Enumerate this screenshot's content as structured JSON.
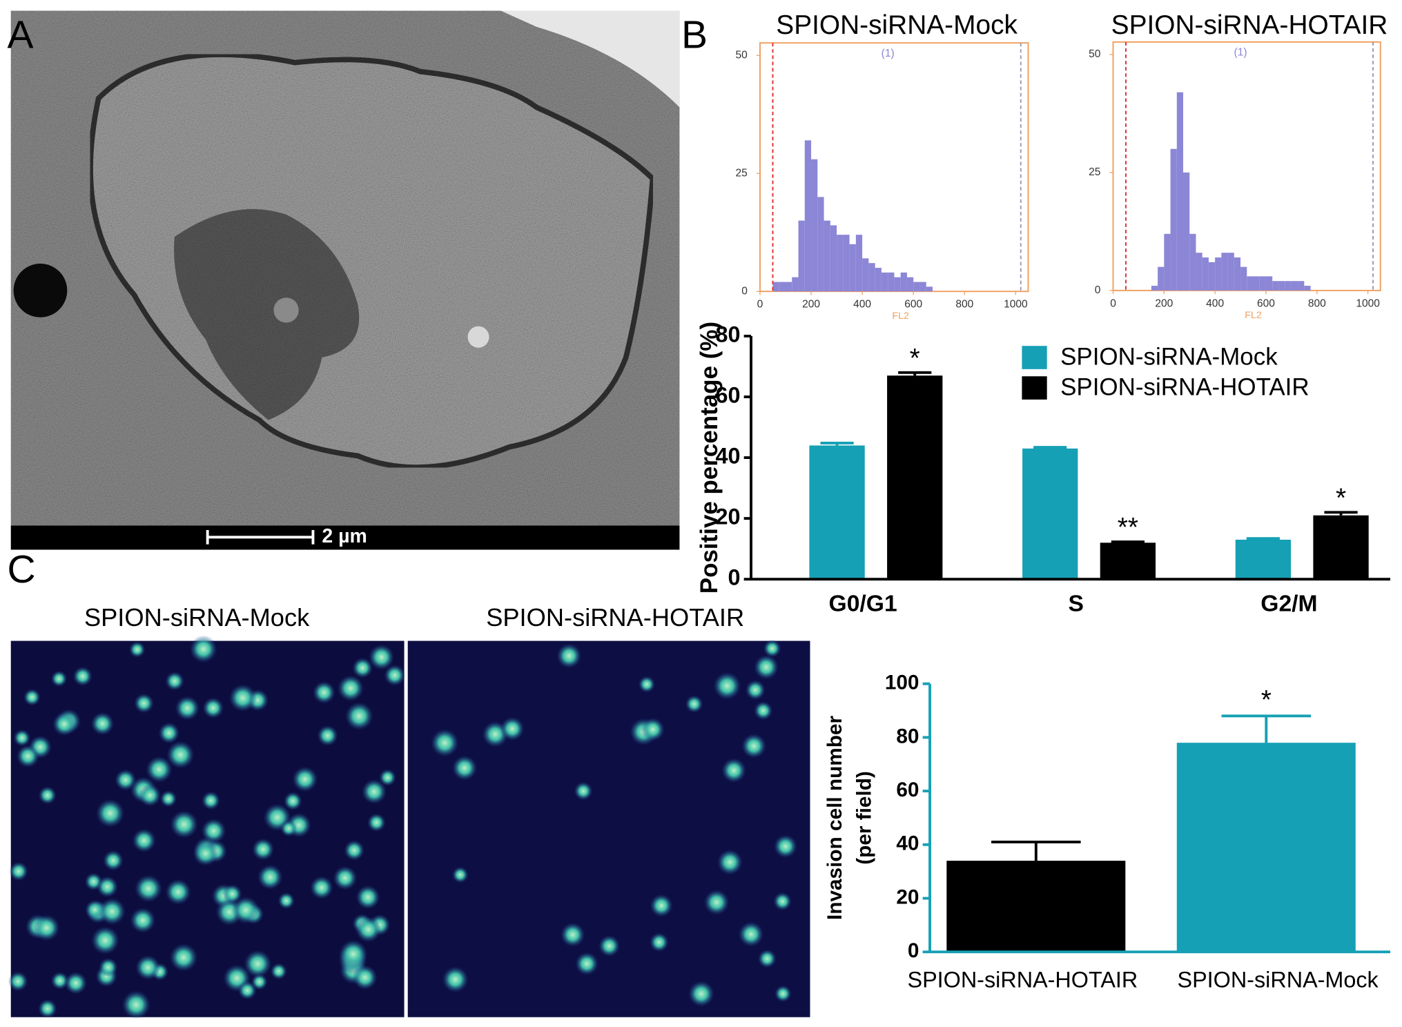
{
  "panel_labels": [
    "A",
    "B",
    "C"
  ],
  "scale_bar": "2 µm",
  "images": [
    {
      "title": "SPION-siRNA-Mock"
    },
    {
      "title": "SPION-siRNA-HOTAIR"
    }
  ],
  "chart_data": [
    {
      "type": "histogram",
      "title": "SPION-siRNA-Mock",
      "xlabel": "FL2",
      "annotation": "(1)",
      "bins": [
        0,
        25,
        50,
        75,
        100,
        125,
        150,
        175,
        200,
        225,
        250,
        275,
        300,
        325,
        350,
        375,
        400,
        425,
        450,
        475,
        500,
        525,
        550,
        575,
        600,
        625,
        650,
        675,
        700,
        725,
        750,
        775,
        800,
        825,
        850,
        875,
        900,
        925,
        950,
        975,
        1000
      ],
      "values": [
        0,
        0,
        2,
        2,
        2,
        3,
        15,
        32,
        28,
        20,
        15,
        14,
        12,
        12,
        10,
        12,
        7,
        6,
        5,
        4,
        4,
        3,
        4,
        3,
        2,
        2,
        1,
        0,
        0,
        0,
        0,
        0,
        0,
        0,
        0,
        0,
        0,
        0,
        0,
        0
      ],
      "color": "#8c86d6",
      "frame_color": "#f0a060",
      "markers": [
        {
          "x": 50,
          "color": "#e03030"
        },
        {
          "x": 1020,
          "color": "#9a9ab8"
        }
      ],
      "xlim": [
        0,
        1000
      ],
      "ylim": [
        0,
        50
      ],
      "xticks": [
        0,
        200,
        400,
        600,
        800,
        1000
      ],
      "yticks": [
        0,
        25,
        50
      ]
    },
    {
      "type": "histogram",
      "title": "SPION-siRNA-HOTAIR",
      "xlabel": "FL2",
      "annotation": "(1)",
      "bins": [
        0,
        25,
        50,
        75,
        100,
        125,
        150,
        175,
        200,
        225,
        250,
        275,
        300,
        325,
        350,
        375,
        400,
        425,
        450,
        475,
        500,
        525,
        550,
        575,
        600,
        625,
        650,
        675,
        700,
        725,
        750,
        775,
        800,
        825,
        850,
        875,
        900,
        925,
        950,
        975,
        1000
      ],
      "values": [
        0,
        0,
        0,
        0,
        0,
        0,
        1,
        5,
        12,
        30,
        42,
        25,
        12,
        8,
        7,
        6,
        7,
        8,
        8,
        7,
        5,
        3,
        3,
        3,
        3,
        2,
        2,
        2,
        2,
        2,
        1,
        0,
        0,
        0,
        0,
        0,
        0,
        0,
        0,
        0
      ],
      "color": "#8c86d6",
      "frame_color": "#f0a060",
      "markers": [
        {
          "x": 50,
          "color": "#e03030"
        },
        {
          "x": 1020,
          "color": "#9a9ab8"
        }
      ],
      "xlim": [
        0,
        1000
      ],
      "ylim": [
        0,
        50
      ],
      "xticks": [
        0,
        200,
        400,
        600,
        800,
        1000
      ],
      "yticks": [
        0,
        25,
        50
      ]
    },
    {
      "type": "bar",
      "ylabel": "Positive percentage (%)",
      "categories": [
        "G0/G1",
        "S",
        "G2/M"
      ],
      "series": [
        {
          "name": "SPION-siRNA-Mock",
          "color": "#15a0b5",
          "values": [
            44,
            43,
            13
          ],
          "errors": [
            0.8,
            0.4,
            0.4
          ]
        },
        {
          "name": "SPION-siRNA-HOTAIR",
          "color": "#000000",
          "values": [
            67,
            12,
            21
          ],
          "errors": [
            1,
            0.3,
            1
          ],
          "annotations": [
            "*",
            "**",
            "*"
          ]
        }
      ],
      "legend": "upper right",
      "axis_color": "#000000",
      "ylim": [
        0,
        80
      ],
      "yticks": [
        0,
        20,
        40,
        60,
        80
      ]
    },
    {
      "type": "bar",
      "ylabel": [
        "Invasion cell number",
        "(per field)"
      ],
      "categories": [
        "SPION-siRNA-HOTAIR",
        "SPION-siRNA-Mock"
      ],
      "values": [
        34,
        78
      ],
      "errors": [
        7,
        10
      ],
      "colors": [
        "#000000",
        "#15a0b5"
      ],
      "annotations": [
        null,
        "*"
      ],
      "axis_color": "#15a0b5",
      "ylim": [
        0,
        100
      ],
      "yticks": [
        0,
        20,
        40,
        60,
        80,
        100
      ]
    }
  ]
}
